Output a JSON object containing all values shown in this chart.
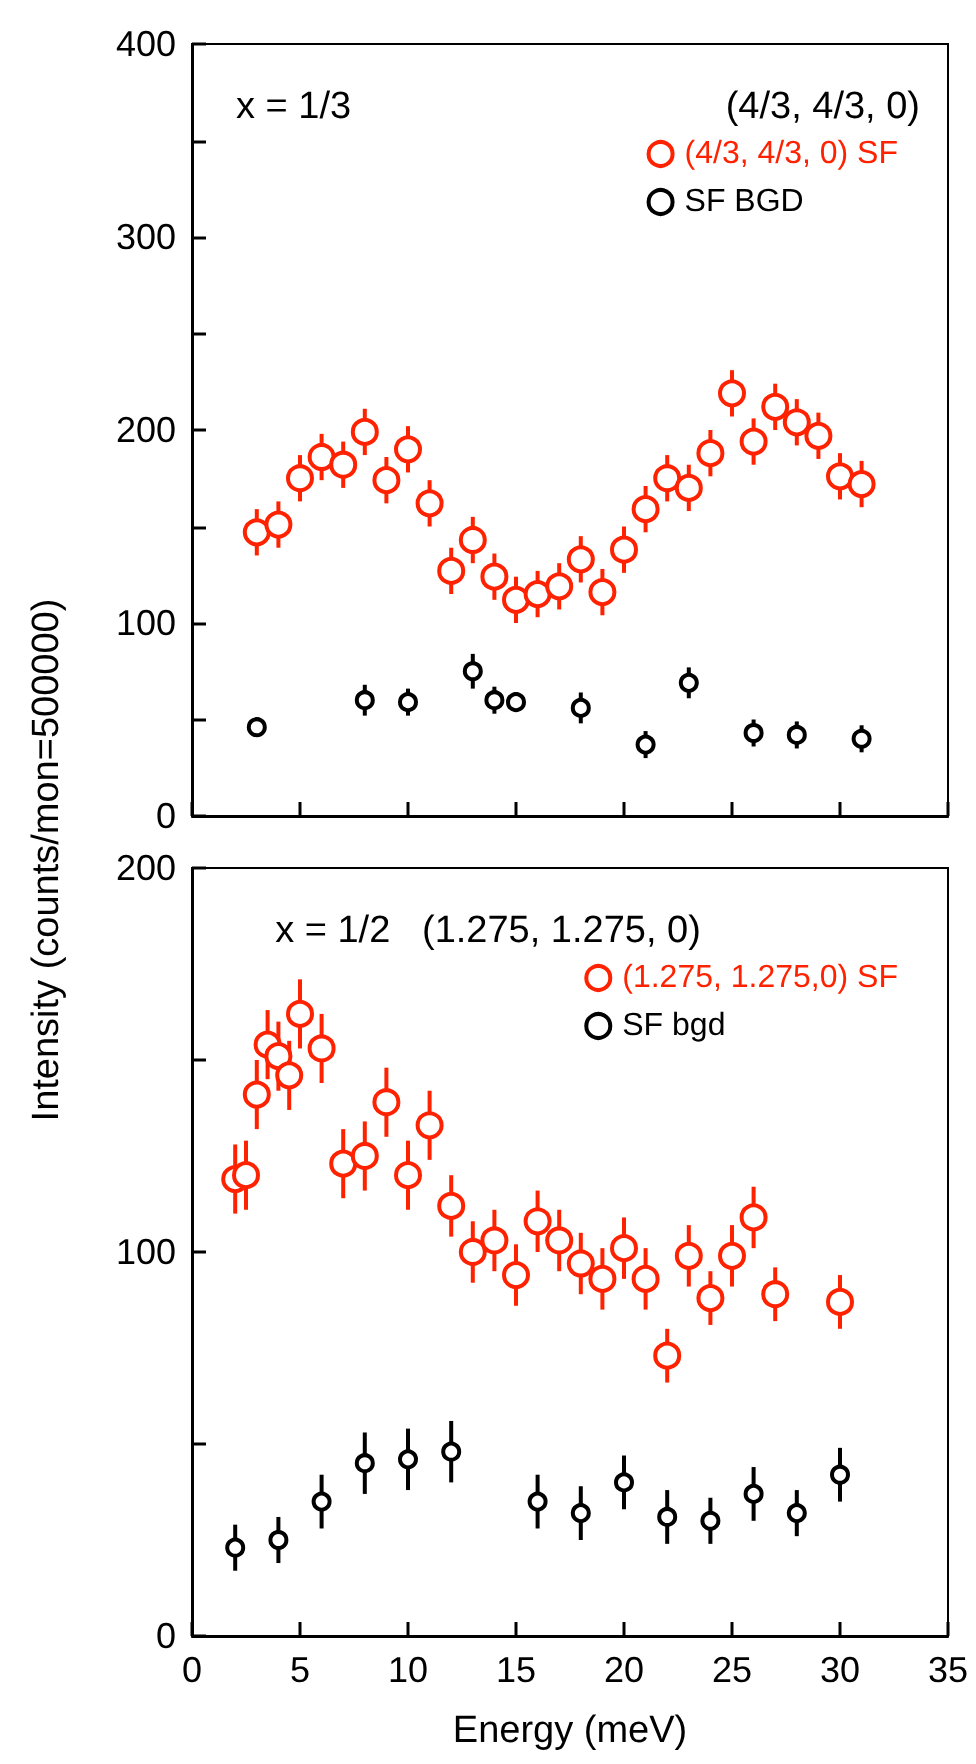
{
  "chart_data": [
    {
      "type": "scatter",
      "ylabel": "Intensity (counts/mon=500000)",
      "annotations": [
        "x = 1/3",
        "(4/3, 4/3, 0)"
      ],
      "xlim": [
        0,
        35
      ],
      "xticks": [
        0,
        5,
        10,
        15,
        20,
        25,
        30,
        35
      ],
      "ylim": [
        0,
        400
      ],
      "yticks": [
        0,
        {
          "value": 50,
          "label": null
        },
        100,
        {
          "value": 150,
          "label": null
        },
        200,
        {
          "value": 250,
          "label": null
        },
        300,
        {
          "value": 350,
          "label": null
        },
        400
      ],
      "tick_labels": "y",
      "grid": false,
      "legend": "top right",
      "marker": "circle",
      "series": [
        {
          "name": "(4/3, 4/3, 0) SF",
          "color": "#ff2200",
          "x": [
            3,
            4,
            5,
            6,
            7,
            8,
            9,
            10,
            11,
            12,
            13,
            14,
            15,
            16,
            17,
            18,
            19,
            20,
            21,
            22,
            23,
            24,
            25,
            26,
            27,
            28,
            29,
            30,
            31
          ],
          "values": [
            147,
            151,
            175,
            186,
            182,
            199,
            174,
            190,
            162,
            127,
            143,
            124,
            112,
            115,
            119,
            133,
            116,
            138,
            159,
            175,
            170,
            188,
            219,
            194,
            212,
            204,
            197,
            176,
            172
          ],
          "errors": [
            12,
            12,
            12,
            12,
            12,
            12,
            12,
            12,
            12,
            12,
            12,
            12,
            12,
            12,
            12,
            12,
            12,
            12,
            12,
            12,
            12,
            12,
            12,
            12,
            12,
            12,
            12,
            12,
            12
          ]
        },
        {
          "name": "SF BGD",
          "color": "#000000",
          "x": [
            3,
            8,
            10,
            13,
            14,
            15,
            18,
            21,
            23,
            26,
            28,
            31
          ],
          "values": [
            46,
            60,
            59,
            75,
            60,
            59,
            56,
            37,
            69,
            43,
            42,
            40
          ],
          "errors": [
            5,
            8,
            7,
            9,
            7,
            5,
            8,
            7,
            8,
            7,
            7,
            7
          ]
        }
      ]
    },
    {
      "type": "scatter",
      "xlabel": "Energy (meV)",
      "annotations": [
        "x = 1/2   (1.275, 1.275, 0)"
      ],
      "xlim": [
        0,
        35
      ],
      "xticks": [
        0,
        5,
        10,
        15,
        20,
        25,
        30,
        35
      ],
      "ylim": [
        0,
        200
      ],
      "yticks": [
        0,
        {
          "value": 50,
          "label": null
        },
        100,
        {
          "value": 150,
          "label": null
        },
        200
      ],
      "grid": false,
      "legend": "top right",
      "marker": "circle",
      "series": [
        {
          "name": "(1.275, 1.275,0) SF",
          "color": "#ff2200",
          "x": [
            2,
            2.5,
            3,
            3.5,
            4,
            4.5,
            5,
            6,
            7,
            8,
            9,
            10,
            11,
            12,
            13,
            14,
            15,
            16,
            17,
            18,
            19,
            20,
            21,
            22,
            23,
            24,
            25,
            26,
            27,
            30
          ],
          "values": [
            119,
            120,
            141,
            154,
            151,
            146,
            162,
            153,
            123,
            125,
            139,
            120,
            133,
            112,
            100,
            103,
            94,
            108,
            103,
            97,
            93,
            101,
            93,
            73,
            99,
            88,
            99,
            109,
            89,
            87
          ],
          "errors": [
            9,
            9,
            9,
            9,
            9,
            9,
            9,
            9,
            9,
            9,
            9,
            9,
            9,
            8,
            8,
            8,
            8,
            8,
            8,
            8,
            8,
            8,
            8,
            7,
            8,
            7,
            8,
            8,
            7,
            7
          ]
        },
        {
          "name": "SF bgd",
          "color": "#000000",
          "x": [
            2,
            4,
            6,
            8,
            10,
            12,
            16,
            18,
            20,
            22,
            24,
            26,
            28,
            30
          ],
          "values": [
            23,
            25,
            35,
            45,
            46,
            48,
            35,
            32,
            40,
            31,
            30,
            37,
            32,
            42
          ],
          "errors": [
            6,
            6,
            7,
            8,
            8,
            8,
            7,
            7,
            7,
            7,
            6,
            7,
            6,
            7
          ]
        }
      ]
    }
  ]
}
